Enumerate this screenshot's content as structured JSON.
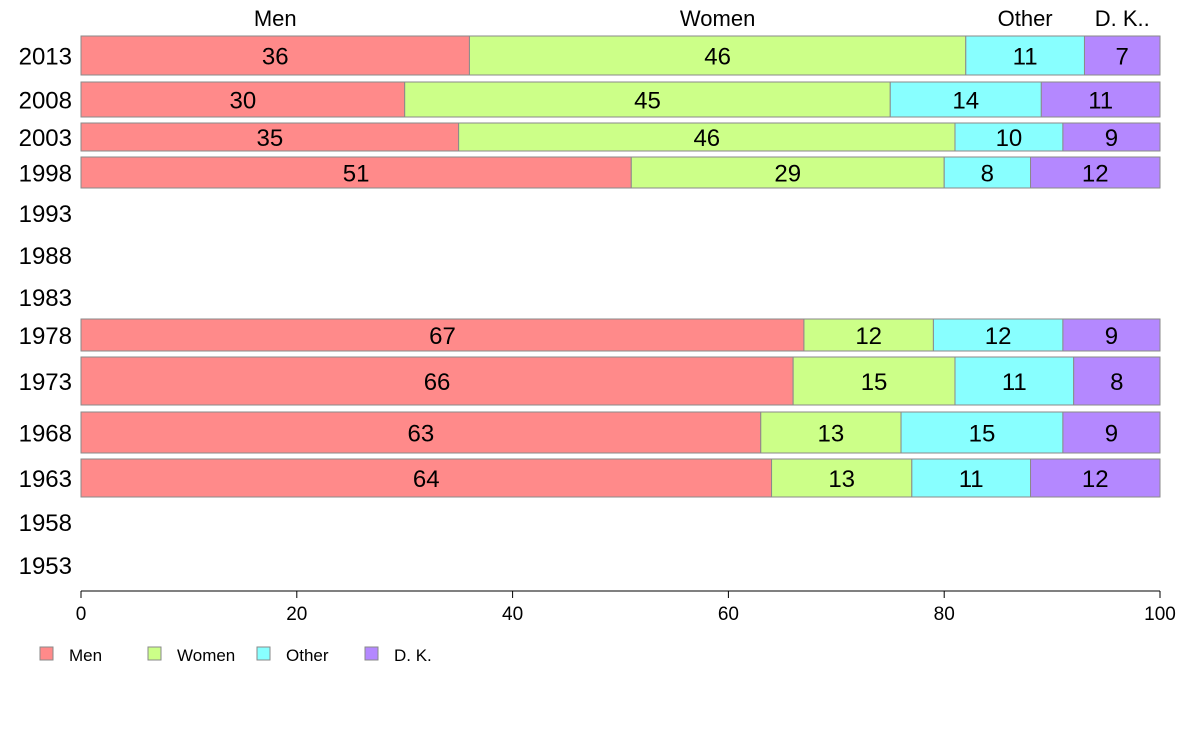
{
  "chart_data": {
    "type": "bar",
    "orientation": "horizontal",
    "stacked": true,
    "title": "",
    "xlabel": "",
    "ylabel": "",
    "xlim": [
      0,
      100
    ],
    "x_ticks": [
      "0",
      "20",
      "40",
      "60",
      "80",
      "100"
    ],
    "categories": [
      "2013",
      "2008",
      "2003",
      "1998",
      "1993",
      "1988",
      "1983",
      "1978",
      "1973",
      "1968",
      "1963",
      "1958",
      "1953"
    ],
    "column_headers": [
      "Men",
      "Women",
      "Other",
      "D. K.."
    ],
    "series": [
      {
        "name": "Men",
        "color": "#ff8a8a",
        "values": [
          36,
          30,
          35,
          51,
          null,
          null,
          null,
          67,
          66,
          63,
          64,
          null,
          null
        ]
      },
      {
        "name": "Women",
        "color": "#ccff88",
        "values": [
          46,
          45,
          46,
          29,
          null,
          null,
          null,
          12,
          15,
          13,
          13,
          null,
          null
        ]
      },
      {
        "name": "Other",
        "color": "#88ffff",
        "values": [
          11,
          14,
          10,
          8,
          null,
          null,
          null,
          12,
          11,
          15,
          11,
          null,
          null
        ]
      },
      {
        "name": "D. K.",
        "color": "#b488ff",
        "values": [
          7,
          11,
          9,
          12,
          null,
          null,
          null,
          9,
          8,
          9,
          12,
          null,
          null
        ]
      }
    ],
    "legend": {
      "position": "bottom-left",
      "entries": [
        "Men",
        "Women",
        "Other",
        "D. K."
      ]
    },
    "grid": false
  }
}
